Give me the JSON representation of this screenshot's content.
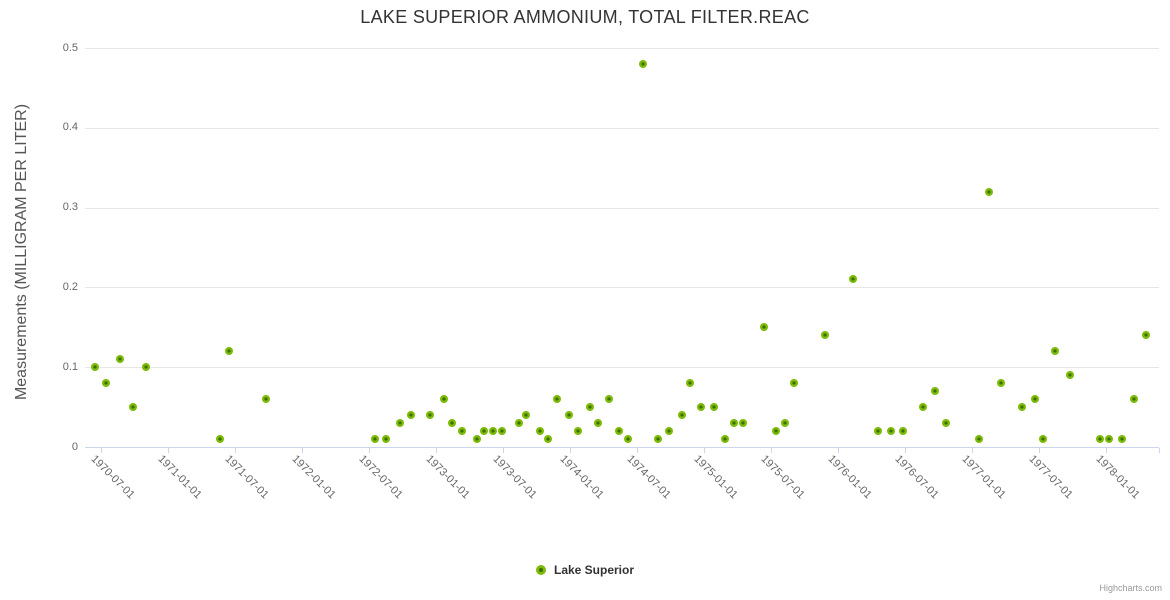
{
  "title": "LAKE SUPERIOR AMMONIUM, TOTAL FILTER.REAC",
  "legend": {
    "label": "Lake Superior"
  },
  "credits": "Highcharts.com",
  "y_axis": {
    "title": "Measurements (MILLIGRAM PER LITER)",
    "tick_labels": [
      "0",
      "0.1",
      "0.2",
      "0.3",
      "0.4",
      "0.5"
    ]
  },
  "x_axis": {
    "tick_labels": [
      "1970-07-01",
      "1971-01-01",
      "1971-07-01",
      "1972-01-01",
      "1972-07-01",
      "1973-01-01",
      "1973-07-01",
      "1974-01-01",
      "1974-07-01",
      "1975-01-01",
      "1975-07-01",
      "1976-01-01",
      "1976-07-01",
      "1977-01-01",
      "1977-07-01",
      "1978-01-01"
    ]
  },
  "colors": {
    "marker_outer": "#7CBB07",
    "marker_inner": "#3E7004",
    "gridline": "#e6e6e6",
    "axis_line": "#ccd6eb",
    "title_text": "#333333",
    "axis_label_text": "#666666",
    "credits_text": "#999999"
  },
  "chart_data": {
    "type": "scatter",
    "title": "LAKE SUPERIOR AMMONIUM, TOTAL FILTER.REAC",
    "xlabel": "",
    "ylabel": "Measurements (MILLIGRAM PER LITER)",
    "ylim": [
      0,
      0.5
    ],
    "y_tick_step": 0.1,
    "xlim": [
      "1970-05-12",
      "1978-05-18"
    ],
    "x_tick_interval": "6 months",
    "grid": "horizontal-only",
    "legend_position": "bottom-center",
    "series": [
      {
        "name": "Lake Superior",
        "marker_color": "#7CBB07",
        "points": [
          [
            "1970-06-15",
            0.1
          ],
          [
            "1970-07-14",
            0.08
          ],
          [
            "1970-08-22",
            0.11
          ],
          [
            "1970-09-27",
            0.05
          ],
          [
            "1970-11-03",
            0.1
          ],
          [
            "1971-05-22",
            0.01
          ],
          [
            "1971-06-16",
            0.12
          ],
          [
            "1971-09-24",
            0.06
          ],
          [
            "1972-07-16",
            0.01
          ],
          [
            "1972-08-18",
            0.01
          ],
          [
            "1972-09-24",
            0.03
          ],
          [
            "1972-10-23",
            0.04
          ],
          [
            "1972-12-14",
            0.04
          ],
          [
            "1973-01-22",
            0.06
          ],
          [
            "1973-02-13",
            0.03
          ],
          [
            "1973-03-12",
            0.02
          ],
          [
            "1973-04-20",
            0.01
          ],
          [
            "1973-05-10",
            0.02
          ],
          [
            "1973-06-04",
            0.02
          ],
          [
            "1973-06-29",
            0.02
          ],
          [
            "1973-08-13",
            0.03
          ],
          [
            "1973-09-03",
            0.04
          ],
          [
            "1973-10-10",
            0.02
          ],
          [
            "1973-11-03",
            0.01
          ],
          [
            "1973-11-25",
            0.06
          ],
          [
            "1973-12-28",
            0.04
          ],
          [
            "1974-01-22",
            0.02
          ],
          [
            "1974-02-24",
            0.05
          ],
          [
            "1974-03-16",
            0.03
          ],
          [
            "1974-04-15",
            0.06
          ],
          [
            "1974-05-12",
            0.02
          ],
          [
            "1974-06-08",
            0.01
          ],
          [
            "1974-07-16",
            0.48
          ],
          [
            "1974-08-27",
            0.01
          ],
          [
            "1974-09-28",
            0.02
          ],
          [
            "1974-11-02",
            0.04
          ],
          [
            "1974-11-24",
            0.08
          ],
          [
            "1974-12-24",
            0.05
          ],
          [
            "1975-01-27",
            0.05
          ],
          [
            "1975-02-28",
            0.01
          ],
          [
            "1975-03-21",
            0.03
          ],
          [
            "1975-04-17",
            0.03
          ],
          [
            "1975-06-12",
            0.15
          ],
          [
            "1975-07-15",
            0.02
          ],
          [
            "1975-08-08",
            0.03
          ],
          [
            "1975-09-02",
            0.08
          ],
          [
            "1975-11-27",
            0.14
          ],
          [
            "1976-02-11",
            0.21
          ],
          [
            "1976-04-18",
            0.02
          ],
          [
            "1976-05-24",
            0.02
          ],
          [
            "1976-06-26",
            0.02
          ],
          [
            "1976-08-20",
            0.05
          ],
          [
            "1976-09-22",
            0.07
          ],
          [
            "1976-10-21",
            0.03
          ],
          [
            "1977-01-21",
            0.01
          ],
          [
            "1977-02-17",
            0.32
          ],
          [
            "1977-03-18",
            0.08
          ],
          [
            "1977-05-16",
            0.05
          ],
          [
            "1977-06-21",
            0.06
          ],
          [
            "1977-07-12",
            0.01
          ],
          [
            "1977-08-15",
            0.12
          ],
          [
            "1977-09-24",
            0.09
          ],
          [
            "1977-12-15",
            0.01
          ],
          [
            "1978-01-09",
            0.01
          ],
          [
            "1978-02-14",
            0.01
          ],
          [
            "1978-03-15",
            0.06
          ],
          [
            "1978-04-18",
            0.14
          ]
        ]
      }
    ]
  }
}
